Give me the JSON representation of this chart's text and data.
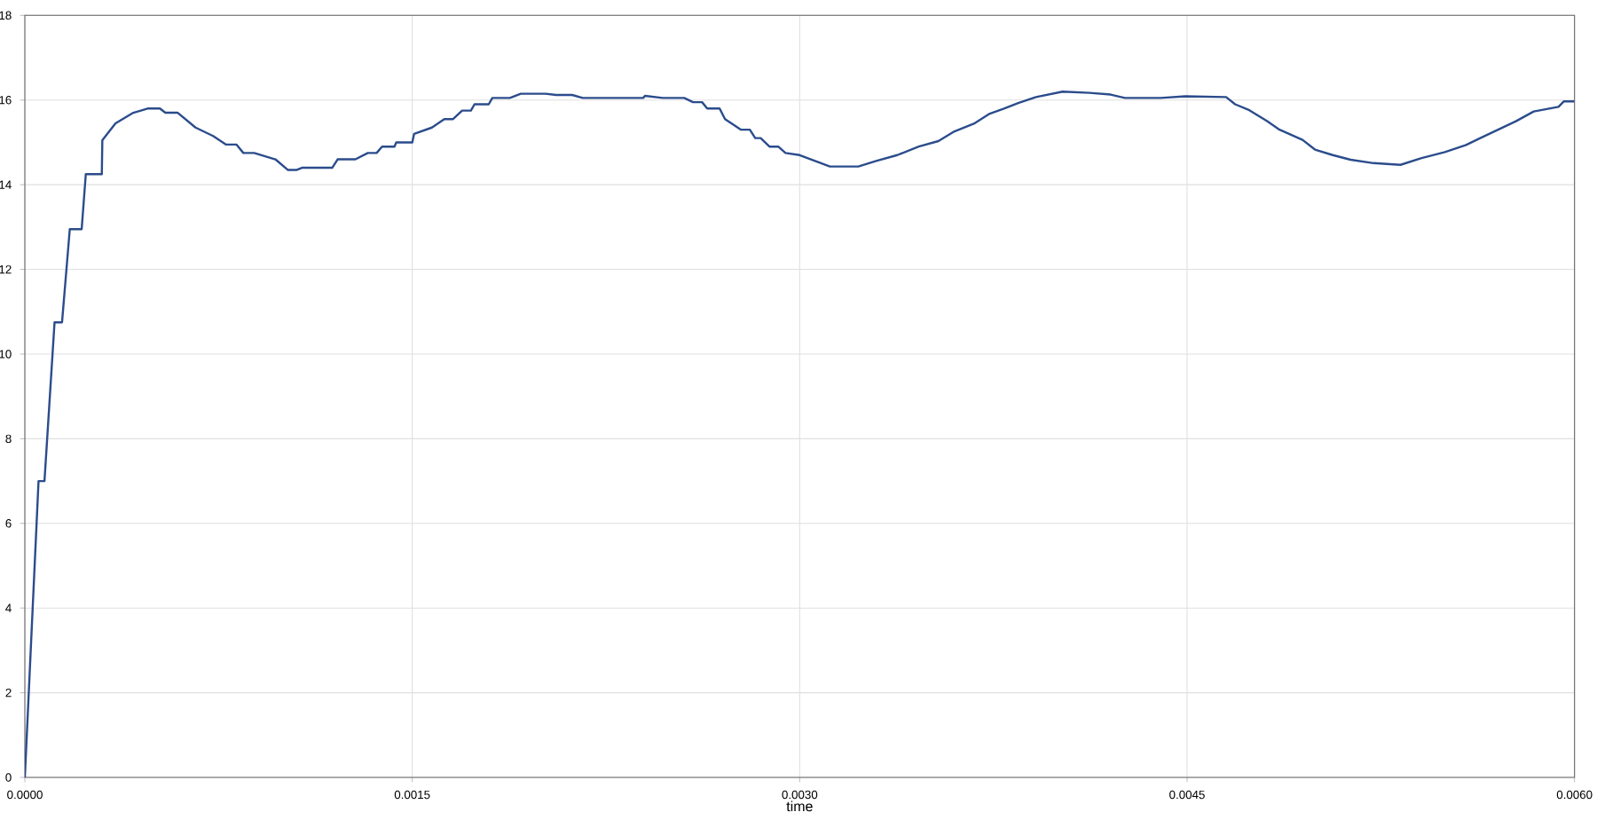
{
  "chart_data": {
    "type": "line",
    "xlabel": "time",
    "x": [
      0,
      5.3e-05,
      7.6e-05,
      0.000115,
      0.000144,
      0.000174,
      0.00022,
      0.000236,
      0.000298,
      0.0003,
      0.000351,
      0.00042,
      0.000475,
      0.000523,
      0.000544,
      0.000592,
      0.000661,
      0.000729,
      0.000778,
      0.000819,
      0.000846,
      0.000888,
      0.00097,
      0.001018,
      0.001053,
      0.001073,
      0.00119,
      0.001211,
      0.00128,
      0.001328,
      0.001362,
      0.001383,
      0.001431,
      0.001438,
      0.0015,
      0.001507,
      0.001576,
      0.001624,
      0.001658,
      0.001693,
      0.001727,
      0.001741,
      0.001796,
      0.00181,
      0.001878,
      0.00192,
      0.002016,
      0.002057,
      0.002119,
      0.00216,
      0.002394,
      0.002401,
      0.00247,
      0.002553,
      0.002587,
      0.002622,
      0.002642,
      0.00269,
      0.002711,
      0.002773,
      0.002807,
      0.002828,
      0.002849,
      0.002883,
      0.002917,
      0.002945,
      0.003,
      0.003117,
      0.003227,
      0.003296,
      0.003378,
      0.003461,
      0.003537,
      0.003599,
      0.003674,
      0.003736,
      0.003791,
      0.003846,
      0.003915,
      0.004018,
      0.004122,
      0.004204,
      0.004259,
      0.004397,
      0.004493,
      0.004651,
      0.004686,
      0.004741,
      0.00481,
      0.004858,
      0.004947,
      0.004995,
      0.005064,
      0.005133,
      0.005222,
      0.005326,
      0.005408,
      0.005498,
      0.00558,
      0.005635,
      0.005704,
      0.005773,
      0.005842,
      0.005938,
      0.005959,
      0.006
    ],
    "series": [
      {
        "color": "#2b4c8c",
        "values": [
          0,
          7.0,
          7.0,
          10.75,
          10.75,
          12.95,
          12.95,
          14.25,
          14.25,
          15.05,
          15.45,
          15.7,
          15.8,
          15.8,
          15.7,
          15.7,
          15.35,
          15.15,
          14.95,
          14.95,
          14.75,
          14.75,
          14.6,
          14.35,
          14.35,
          14.4,
          14.4,
          14.6,
          14.6,
          14.75,
          14.75,
          14.9,
          14.9,
          15.0,
          15.0,
          15.2,
          15.35,
          15.55,
          15.55,
          15.75,
          15.75,
          15.9,
          15.9,
          16.05,
          16.05,
          16.15,
          16.15,
          16.12,
          16.12,
          16.05,
          16.05,
          16.1,
          16.05,
          16.05,
          15.95,
          15.95,
          15.8,
          15.8,
          15.55,
          15.3,
          15.3,
          15.1,
          15.1,
          14.9,
          14.9,
          14.75,
          14.7,
          14.43,
          14.43,
          14.56,
          14.7,
          14.9,
          15.03,
          15.26,
          15.44,
          15.68,
          15.8,
          15.93,
          16.07,
          16.2,
          16.17,
          16.13,
          16.05,
          16.05,
          16.09,
          16.07,
          15.9,
          15.76,
          15.5,
          15.3,
          15.06,
          14.83,
          14.7,
          14.59,
          14.51,
          14.47,
          14.63,
          14.77,
          14.94,
          15.1,
          15.3,
          15.5,
          15.73,
          15.84,
          15.97,
          15.97
        ]
      }
    ],
    "xlim": [
      0,
      0.006
    ],
    "ylim": [
      0,
      18
    ],
    "xticks": [
      {
        "value": 0,
        "label": "0.0000"
      },
      {
        "value": 0.0015,
        "label": "0.0015"
      },
      {
        "value": 0.003,
        "label": "0.0030"
      },
      {
        "value": 0.0045,
        "label": "0.0045"
      },
      {
        "value": 0.006,
        "label": "0.0060"
      }
    ],
    "yticks": [
      0,
      2,
      4,
      6,
      8,
      10,
      12,
      14,
      16,
      18
    ],
    "grid": true,
    "marker": "none",
    "line_style": "solid"
  }
}
